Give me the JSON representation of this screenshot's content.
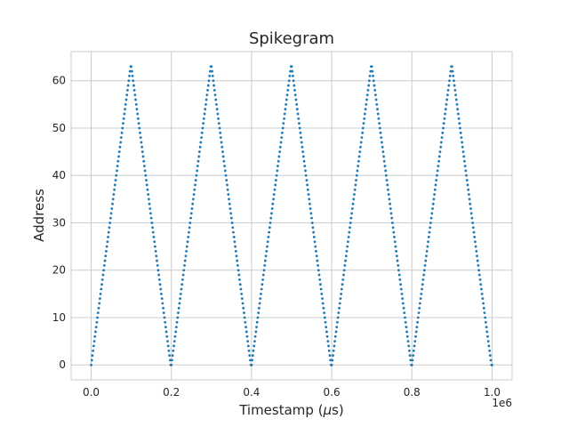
{
  "chart_data": {
    "type": "scatter",
    "title": "Spikegram",
    "xlabel_prefix": "Timestamp (",
    "xlabel_mu": "μ",
    "xlabel_suffix": "s)",
    "ylabel": "Address",
    "x_offset_label": "1e6",
    "x_scale": 1000000,
    "xlim": [
      -0.05,
      1.05
    ],
    "ylim": [
      -3.15,
      66.15
    ],
    "x_ticks": [
      0.0,
      0.2,
      0.4,
      0.6,
      0.8,
      1.0
    ],
    "x_tick_labels": [
      "0.0",
      "0.2",
      "0.4",
      "0.6",
      "0.8",
      "1.0"
    ],
    "y_ticks": [
      0,
      10,
      20,
      30,
      40,
      50,
      60
    ],
    "y_tick_labels": [
      "0",
      "10",
      "20",
      "30",
      "40",
      "50",
      "60"
    ],
    "grid": true,
    "marker_color": "#1f77b4",
    "series": [
      {
        "pattern": "triangle",
        "period": 200000,
        "min_address": 0,
        "max_address": 63,
        "peaks": [
          100000,
          300000,
          500000,
          700000,
          900000
        ],
        "valleys": [
          0,
          200000,
          400000,
          600000,
          800000,
          1000000
        ],
        "points_per_half_period": 64
      }
    ]
  }
}
